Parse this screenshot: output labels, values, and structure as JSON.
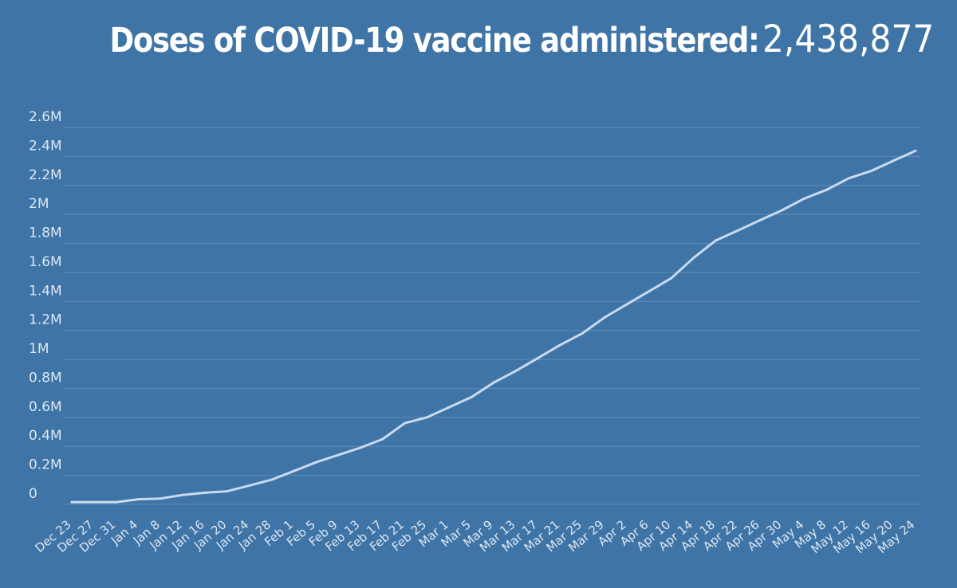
{
  "header": {
    "title": "Doses of COVID-19 vaccine administered:",
    "total": "2,438,877"
  },
  "colors": {
    "background": "#3f74a6",
    "line": "#c9daef",
    "grid": "#7ea3c7",
    "text": "#ffffff"
  },
  "chart_data": {
    "type": "line",
    "title": "Doses of COVID-19 vaccine administered: 2,438,877",
    "xlabel": "",
    "ylabel": "",
    "ylim": [
      0,
      2600000
    ],
    "grid": true,
    "y_ticks": [
      {
        "value": 0,
        "label": "0"
      },
      {
        "value": 200000,
        "label": "0.2M"
      },
      {
        "value": 400000,
        "label": "0.4M"
      },
      {
        "value": 600000,
        "label": "0.6M"
      },
      {
        "value": 800000,
        "label": "0.8M"
      },
      {
        "value": 1000000,
        "label": "1M"
      },
      {
        "value": 1200000,
        "label": "1.2M"
      },
      {
        "value": 1400000,
        "label": "1.4M"
      },
      {
        "value": 1600000,
        "label": "1.6M"
      },
      {
        "value": 1800000,
        "label": "1.8M"
      },
      {
        "value": 2000000,
        "label": "2M"
      },
      {
        "value": 2200000,
        "label": "2.2M"
      },
      {
        "value": 2400000,
        "label": "2.4M"
      },
      {
        "value": 2600000,
        "label": "2.6M"
      }
    ],
    "x_ticks": [
      "Dec 23",
      "Dec 27",
      "Dec 31",
      "Jan 4",
      "Jan 8",
      "Jan 12",
      "Jan 16",
      "Jan 20",
      "Jan 24",
      "Jan 28",
      "Feb 1",
      "Feb 5",
      "Feb 9",
      "Feb 13",
      "Feb 17",
      "Feb 21",
      "Feb 25",
      "Mar 1",
      "Mar 5",
      "Mar 9",
      "Mar 13",
      "Mar 17",
      "Mar 21",
      "Mar 25",
      "Mar 29",
      "Apr 2",
      "Apr 6",
      "Apr 10",
      "Apr 14",
      "Apr 18",
      "Apr 22",
      "Apr 26",
      "Apr 30",
      "May 4",
      "May 8",
      "May 12",
      "May 16",
      "May 20",
      "May 24"
    ],
    "series": [
      {
        "points": [
          {
            "x": "Dec 23",
            "y": 15000
          },
          {
            "x": "Dec 27",
            "y": 15000
          },
          {
            "x": "Dec 31",
            "y": 15000
          },
          {
            "x": "Jan 4",
            "y": 35000
          },
          {
            "x": "Jan 8",
            "y": 40000
          },
          {
            "x": "Jan 12",
            "y": 65000
          },
          {
            "x": "Jan 16",
            "y": 80000
          },
          {
            "x": "Jan 20",
            "y": 90000
          },
          {
            "x": "Jan 24",
            "y": 130000
          },
          {
            "x": "Jan 28",
            "y": 170000
          },
          {
            "x": "Feb 1",
            "y": 230000
          },
          {
            "x": "Feb 5",
            "y": 290000
          },
          {
            "x": "Feb 9",
            "y": 340000
          },
          {
            "x": "Feb 13",
            "y": 390000
          },
          {
            "x": "Feb 17",
            "y": 450000
          },
          {
            "x": "Feb 21",
            "y": 560000
          },
          {
            "x": "Feb 25",
            "y": 600000
          },
          {
            "x": "Mar 1",
            "y": 670000
          },
          {
            "x": "Mar 5",
            "y": 740000
          },
          {
            "x": "Mar 9",
            "y": 840000
          },
          {
            "x": "Mar 13",
            "y": 920000
          },
          {
            "x": "Mar 17",
            "y": 1010000
          },
          {
            "x": "Mar 21",
            "y": 1100000
          },
          {
            "x": "Mar 25",
            "y": 1180000
          },
          {
            "x": "Mar 29",
            "y": 1290000
          },
          {
            "x": "Apr 2",
            "y": 1380000
          },
          {
            "x": "Apr 6",
            "y": 1470000
          },
          {
            "x": "Apr 10",
            "y": 1560000
          },
          {
            "x": "Apr 14",
            "y": 1700000
          },
          {
            "x": "Apr 18",
            "y": 1820000
          },
          {
            "x": "Apr 22",
            "y": 1890000
          },
          {
            "x": "Apr 26",
            "y": 1960000
          },
          {
            "x": "Apr 30",
            "y": 2030000
          },
          {
            "x": "May 4",
            "y": 2110000
          },
          {
            "x": "May 8",
            "y": 2170000
          },
          {
            "x": "May 12",
            "y": 2250000
          },
          {
            "x": "May 16",
            "y": 2300000
          },
          {
            "x": "May 20",
            "y": 2370000
          },
          {
            "x": "May 24",
            "y": 2438877
          }
        ]
      }
    ]
  }
}
